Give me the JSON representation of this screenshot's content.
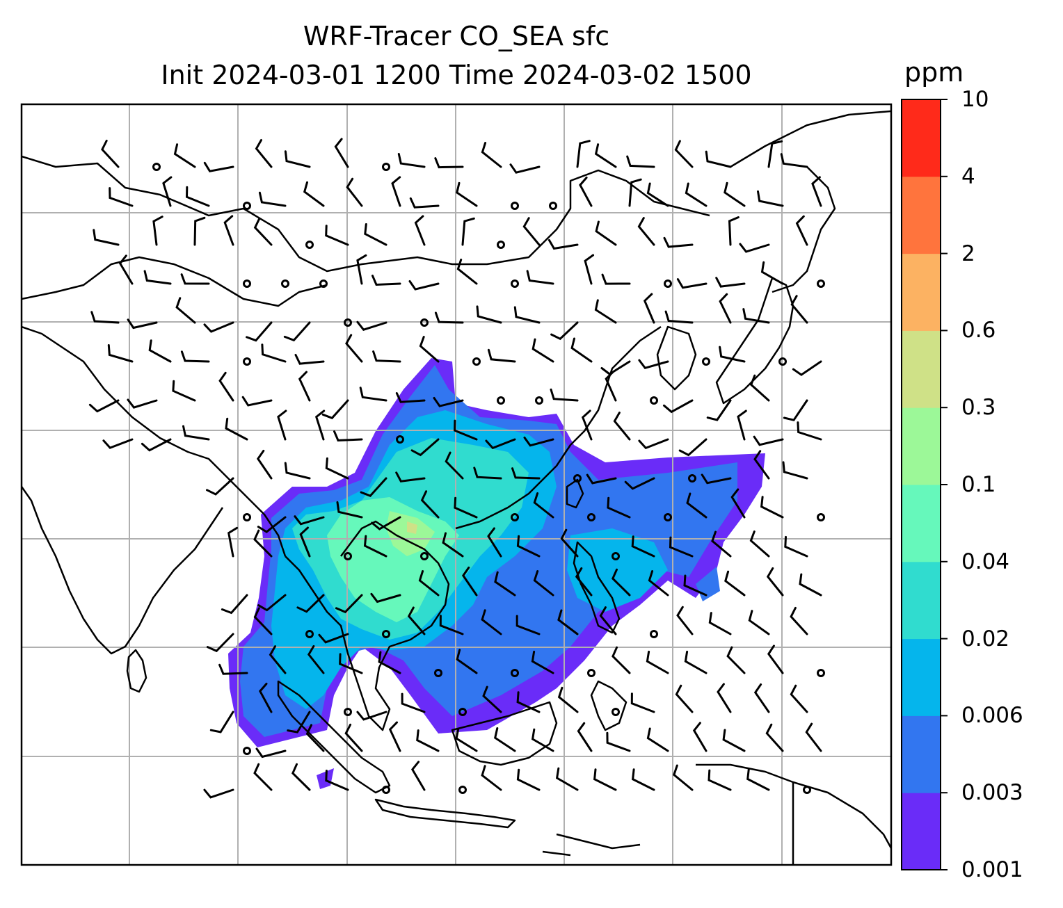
{
  "title": {
    "line1": "WRF-Tracer CO_SEA sfc",
    "line2": "Init 2024-03-01 1200 Time 2024-03-02 1500"
  },
  "colorbar": {
    "unit": "ppm",
    "levels": [
      "0.001",
      "0.003",
      "0.006",
      "0.02",
      "0.04",
      "0.1",
      "0.3",
      "0.6",
      "2",
      "4",
      "10"
    ],
    "colors": [
      "#6a2cf8",
      "#3276f0",
      "#05b5ec",
      "#30dccf",
      "#66f8bb",
      "#9cf898",
      "#cfe187",
      "#fcb262",
      "#ff743d",
      "#ff2a1a"
    ]
  },
  "map": {
    "gridline_color": "#b0b0b0",
    "coastline_color": "#000000",
    "wind_barb_color": "#000000"
  }
}
